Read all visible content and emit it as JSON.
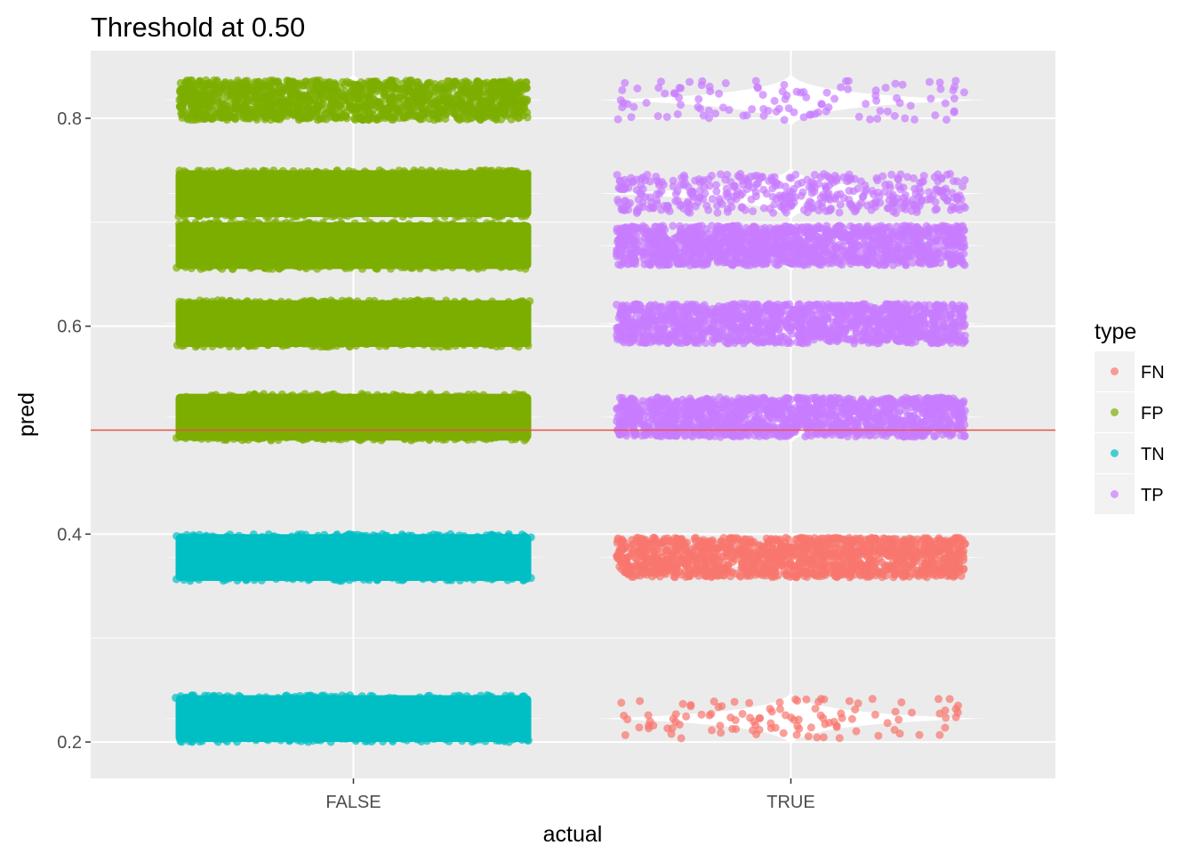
{
  "chart_data": {
    "type": "scatter",
    "subtype": "jitter-with-violin",
    "title": "Threshold at 0.50",
    "xlabel": "actual",
    "ylabel": "pred",
    "categories": [
      "FALSE",
      "TRUE"
    ],
    "ylim": [
      0.165,
      0.865
    ],
    "yticks": [
      0.2,
      0.4,
      0.6,
      0.8
    ],
    "yticklabels": [
      "0.2",
      "0.4",
      "0.6",
      "0.8"
    ],
    "threshold": 0.5,
    "threshold_color": "#e8534a",
    "grid": true,
    "legend": {
      "title": "type",
      "position": "right",
      "entries": [
        {
          "label": "FN",
          "color": "#F8766D"
        },
        {
          "label": "FP",
          "color": "#7CAE00"
        },
        {
          "label": "TN",
          "color": "#00BFC4"
        },
        {
          "label": "TP",
          "color": "#C77CFF"
        }
      ]
    },
    "series": [
      {
        "name": "FN",
        "points": [
          {
            "actual": "TRUE",
            "pred_min": 0.355,
            "pred_max": 0.4,
            "density": "dense"
          },
          {
            "actual": "TRUE",
            "pred_min": 0.2,
            "pred_max": 0.245,
            "density": "sparse"
          }
        ]
      },
      {
        "name": "FP",
        "points": [
          {
            "actual": "FALSE",
            "pred_min": 0.795,
            "pred_max": 0.84,
            "density": "dense"
          },
          {
            "actual": "FALSE",
            "pred_min": 0.705,
            "pred_max": 0.75,
            "density": "solid"
          },
          {
            "actual": "FALSE",
            "pred_min": 0.655,
            "pred_max": 0.7,
            "density": "solid"
          },
          {
            "actual": "FALSE",
            "pred_min": 0.58,
            "pred_max": 0.625,
            "density": "solid"
          },
          {
            "actual": "FALSE",
            "pred_min": 0.49,
            "pred_max": 0.535,
            "density": "solid"
          }
        ]
      },
      {
        "name": "TN",
        "points": [
          {
            "actual": "FALSE",
            "pred_min": 0.355,
            "pred_max": 0.4,
            "density": "solid"
          },
          {
            "actual": "FALSE",
            "pred_min": 0.2,
            "pred_max": 0.245,
            "density": "solid"
          }
        ]
      },
      {
        "name": "TP",
        "points": [
          {
            "actual": "TRUE",
            "pred_min": 0.795,
            "pred_max": 0.84,
            "density": "sparse"
          },
          {
            "actual": "TRUE",
            "pred_min": 0.705,
            "pred_max": 0.75,
            "density": "medium"
          },
          {
            "actual": "TRUE",
            "pred_min": 0.655,
            "pred_max": 0.7,
            "density": "dense"
          },
          {
            "actual": "TRUE",
            "pred_min": 0.58,
            "pred_max": 0.625,
            "density": "dense"
          },
          {
            "actual": "TRUE",
            "pred_min": 0.49,
            "pred_max": 0.535,
            "density": "dense"
          }
        ]
      }
    ]
  }
}
